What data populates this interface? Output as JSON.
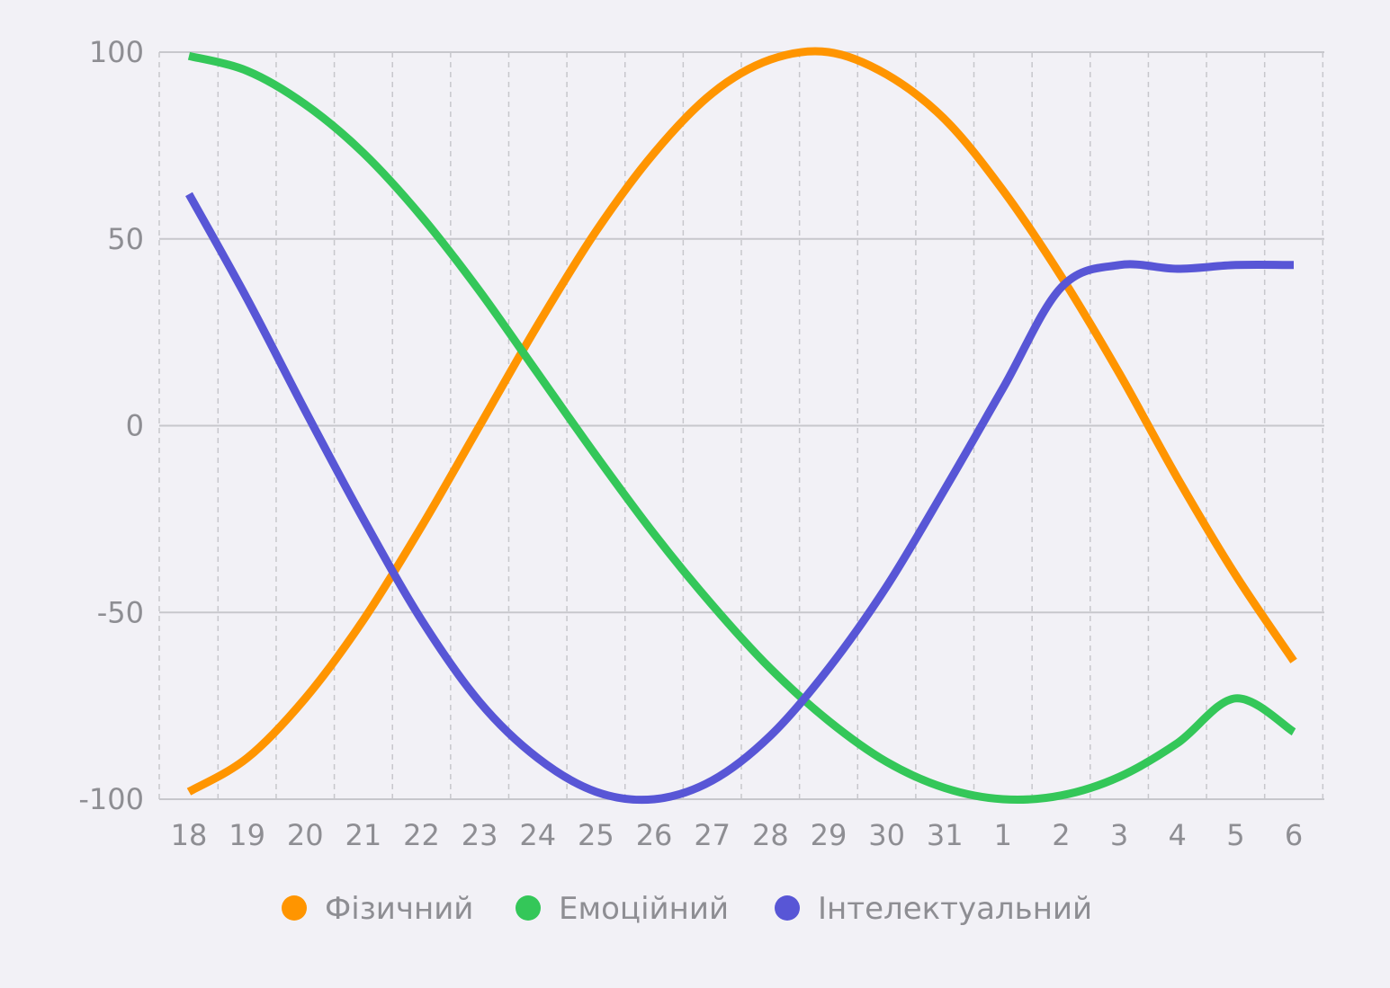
{
  "chart_data": {
    "type": "line",
    "title": "",
    "xlabel": "",
    "ylabel": "",
    "ylim": [
      -100,
      100
    ],
    "y_ticks": [
      "100",
      "50",
      "0",
      "-50",
      "-100"
    ],
    "x_ticks": [
      "18",
      "19",
      "20",
      "21",
      "22",
      "23",
      "24",
      "25",
      "26",
      "27",
      "28",
      "29",
      "30",
      "31",
      "1",
      "2",
      "3",
      "4",
      "5",
      "6"
    ],
    "grid": {
      "horizontal": "solid",
      "vertical": "dashed"
    },
    "legend_position": "bottom",
    "series": [
      {
        "name": "Фізичний",
        "color": "#ff9500",
        "values": [
          -98,
          -89,
          -73,
          -52,
          -27,
          0,
          27,
          52,
          73,
          89,
          98,
          100,
          94,
          82,
          63,
          40,
          14,
          -14,
          -40,
          -63
        ]
      },
      {
        "name": "Емоційний",
        "color": "#34c759",
        "values": [
          99,
          95,
          86,
          73,
          56,
          36,
          14,
          -8,
          -29,
          -48,
          -65,
          -79,
          -90,
          -97,
          -100,
          -99,
          -94,
          -85,
          -73,
          -82
        ]
      },
      {
        "name": "Інтелектуальний",
        "color": "#5856d6",
        "values": [
          62,
          34,
          4,
          -25,
          -52,
          -74,
          -89,
          -98,
          -100,
          -95,
          -83,
          -65,
          -43,
          -17,
          10,
          37,
          43,
          42,
          43,
          43
        ]
      }
    ]
  }
}
